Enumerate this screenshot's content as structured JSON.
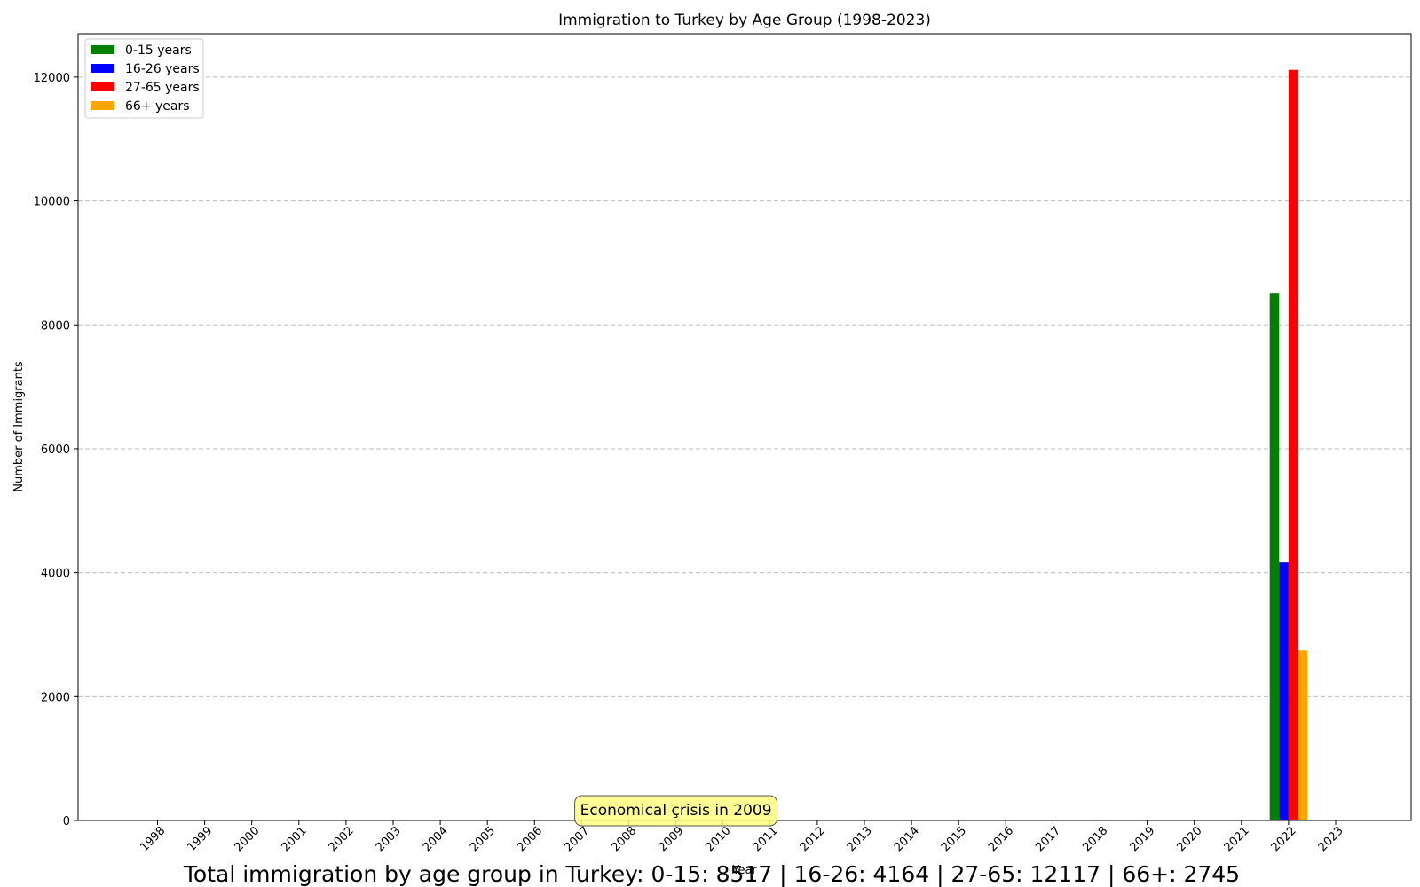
{
  "chart_data": {
    "type": "bar",
    "title": "Immigration to Turkey by Age Group (1998-2023)",
    "xlabel": "Year",
    "ylabel": "Number of Immigrants",
    "categories": [
      "1998",
      "1999",
      "2000",
      "2001",
      "2002",
      "2003",
      "2004",
      "2005",
      "2006",
      "2007",
      "2008",
      "2009",
      "2010",
      "2011",
      "2012",
      "2013",
      "2014",
      "2015",
      "2016",
      "2017",
      "2018",
      "2019",
      "2020",
      "2021",
      "2022",
      "2023"
    ],
    "ylim": [
      0,
      12700
    ],
    "yticks": [
      0,
      2000,
      4000,
      6000,
      8000,
      10000,
      12000
    ],
    "grid": "y-dashed",
    "legend_position": "top-left",
    "series": [
      {
        "name": "0-15 years",
        "color": "#008000",
        "values": [
          0,
          0,
          0,
          0,
          0,
          0,
          0,
          0,
          0,
          0,
          0,
          0,
          0,
          0,
          0,
          0,
          0,
          0,
          0,
          0,
          0,
          0,
          0,
          0,
          8517,
          0
        ]
      },
      {
        "name": "16-26 years",
        "color": "#0000ff",
        "values": [
          0,
          0,
          0,
          0,
          0,
          0,
          0,
          0,
          0,
          0,
          0,
          0,
          0,
          0,
          0,
          0,
          0,
          0,
          0,
          0,
          0,
          0,
          0,
          0,
          4164,
          0
        ]
      },
      {
        "name": "27-65 years",
        "color": "#ff0000",
        "values": [
          0,
          0,
          0,
          0,
          0,
          0,
          0,
          0,
          0,
          0,
          0,
          0,
          0,
          0,
          0,
          0,
          0,
          0,
          0,
          0,
          0,
          0,
          0,
          0,
          12117,
          0
        ]
      },
      {
        "name": "66+ years",
        "color": "#ffa500",
        "values": [
          0,
          0,
          0,
          0,
          0,
          0,
          0,
          0,
          0,
          0,
          0,
          0,
          0,
          0,
          0,
          0,
          0,
          0,
          0,
          0,
          0,
          0,
          0,
          0,
          2745,
          0
        ]
      }
    ],
    "annotations": [
      {
        "text": "Economical çrisis in 2009",
        "anchor_category": "2009",
        "color": "#ffff80"
      }
    ],
    "footer": "Total immigration by age group in Turkey: 0-15: 8517 | 16-26: 4164 | 27-65: 12117 | 66+: 2745"
  }
}
